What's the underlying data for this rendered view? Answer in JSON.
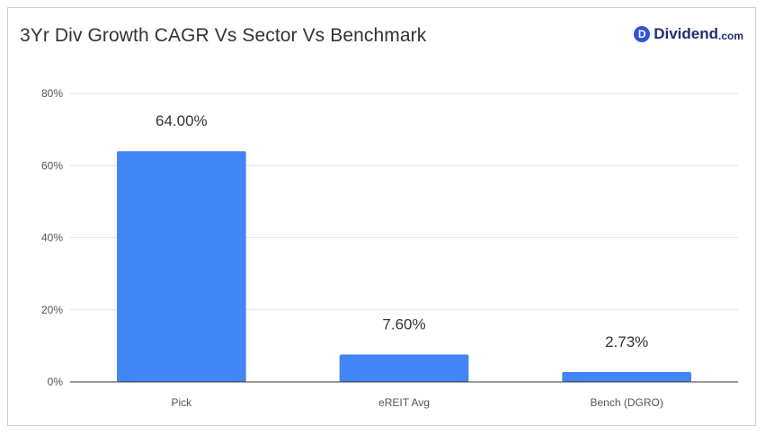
{
  "brand": {
    "mark": "D",
    "name": "Dividend",
    "suffix": ".com",
    "color": "#2f55d4"
  },
  "chart_data": {
    "type": "bar",
    "title": "3Yr Div Growth CAGR Vs Sector Vs Benchmark",
    "xlabel": "",
    "ylabel": "",
    "categories": [
      "Pick",
      "eREIT Avg",
      "Bench (DGRO)"
    ],
    "values": [
      64.0,
      7.6,
      2.73
    ],
    "data_labels": [
      "64.00%",
      "7.60%",
      "2.73%"
    ],
    "ylim": [
      0,
      80
    ],
    "yticks": [
      0,
      20,
      40,
      60,
      80
    ],
    "ytick_labels": [
      "0%",
      "20%",
      "40%",
      "60%",
      "80%"
    ],
    "bar_color": "#4285f4",
    "grid": true,
    "legend": "none"
  }
}
